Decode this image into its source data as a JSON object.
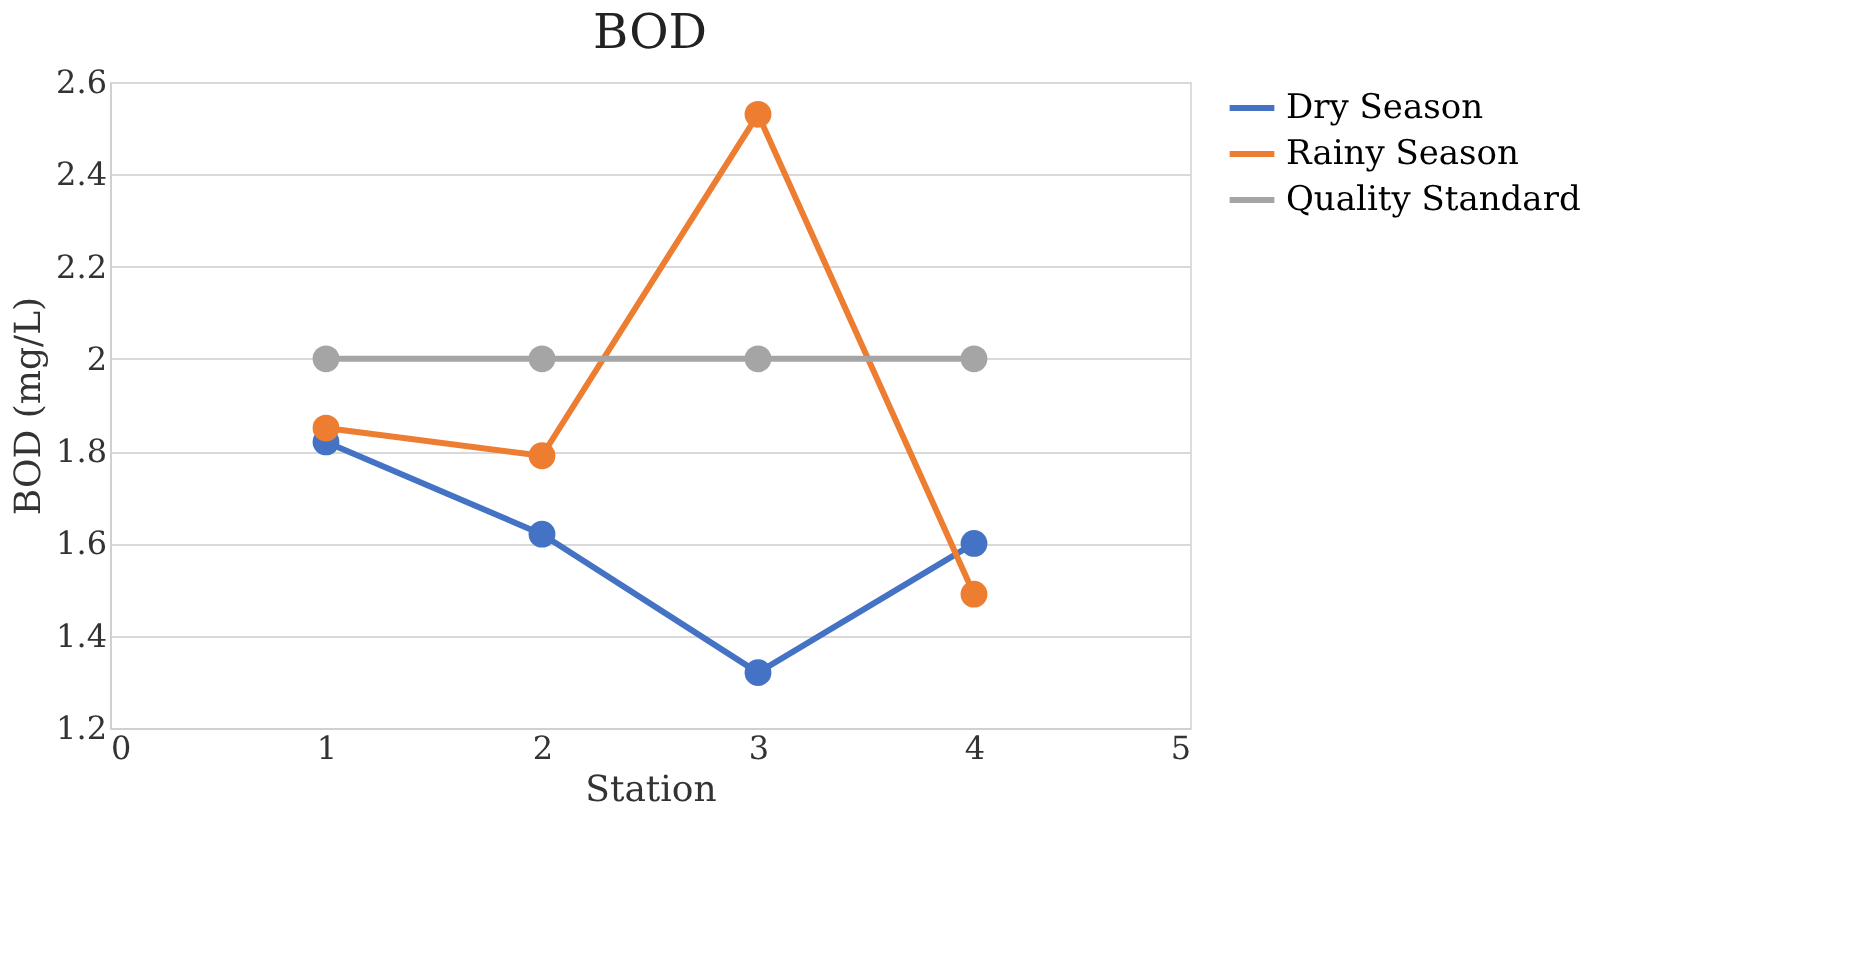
{
  "chart_data": {
    "type": "line",
    "title": "BOD",
    "xlabel": "Station",
    "ylabel": "BOD (mg/L)",
    "x": [
      1,
      2,
      3,
      4
    ],
    "series": [
      {
        "name": "Dry Season",
        "color": "#4472c4",
        "values": [
          1.82,
          1.62,
          1.32,
          1.6
        ]
      },
      {
        "name": "Rainy Season",
        "color": "#ed7d31",
        "values": [
          1.85,
          1.79,
          2.53,
          1.49
        ]
      },
      {
        "name": "Quality Standard",
        "color": "#a5a5a5",
        "values": [
          2,
          2,
          2,
          2
        ]
      }
    ],
    "xlim": [
      0,
      5
    ],
    "xticks": [
      0,
      1,
      2,
      3,
      4,
      5
    ],
    "ylim": [
      1.2,
      2.6
    ],
    "yticks": [
      1.2,
      1.4,
      1.6,
      1.8,
      2,
      2.2,
      2.4,
      2.6
    ],
    "grid": "y",
    "legend": "right",
    "marker": "circle",
    "line_style": "solid"
  }
}
